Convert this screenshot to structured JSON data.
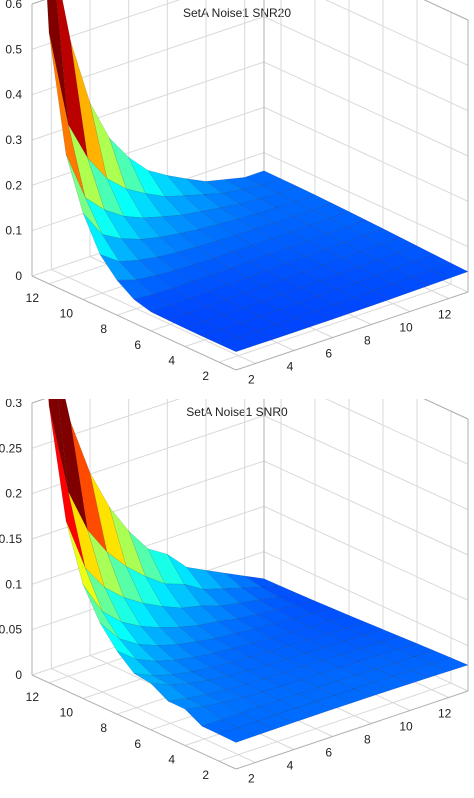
{
  "chart_data": [
    {
      "type": "surface",
      "title": "SetA Noise1 SNR20",
      "xlabel": "",
      "ylabel": "",
      "zlabel": "",
      "x_ticks": [
        "2",
        "4",
        "6",
        "8",
        "10",
        "12"
      ],
      "y_ticks": [
        "2",
        "4",
        "6",
        "8",
        "10",
        "12"
      ],
      "z_ticks": [
        "0",
        "0.1",
        "0.2",
        "0.3",
        "0.4",
        "0.5",
        "0.6"
      ],
      "xlim": [
        1,
        13
      ],
      "ylim": [
        1,
        13
      ],
      "zlim": [
        0,
        0.6
      ],
      "grid": true,
      "colormap": "jet",
      "peak": {
        "x": 1,
        "y": 13,
        "z": 0.62
      },
      "ridge_along_x_at_y13": [
        0.62,
        0.36,
        0.28,
        0.22,
        0.18,
        0.15,
        0.12,
        0.1,
        0.08,
        0.06,
        0.05,
        0.04,
        0.03
      ],
      "ridge_along_y_at_x1": [
        0.02,
        0.02,
        0.02,
        0.02,
        0.03,
        0.03,
        0.04,
        0.05,
        0.06,
        0.08,
        0.1,
        0.2,
        0.62
      ]
    },
    {
      "type": "surface",
      "title": "SetA Noise1 SNR0",
      "xlabel": "",
      "ylabel": "",
      "zlabel": "",
      "x_ticks": [
        "2",
        "4",
        "6",
        "8",
        "10",
        "12"
      ],
      "y_ticks": [
        "2",
        "4",
        "6",
        "8",
        "10",
        "12"
      ],
      "z_ticks": [
        "0",
        "0.05",
        "0.1",
        "0.15",
        "0.2",
        "0.25",
        "0.3"
      ],
      "xlim": [
        1,
        13
      ],
      "ylim": [
        1,
        13
      ],
      "zlim": [
        0,
        0.3
      ],
      "grid": true,
      "colormap": "jet",
      "peak": {
        "x": 1,
        "y": 13,
        "z": 0.29
      },
      "ridge_along_x_at_y13": [
        0.29,
        0.2,
        0.17,
        0.15,
        0.13,
        0.11,
        0.09,
        0.08,
        0.06,
        0.05,
        0.04,
        0.03,
        0.02
      ],
      "ridge_along_y_at_x1": [
        0.02,
        0.02,
        0.02,
        0.03,
        0.03,
        0.04,
        0.04,
        0.05,
        0.06,
        0.07,
        0.09,
        0.14,
        0.29
      ]
    }
  ]
}
